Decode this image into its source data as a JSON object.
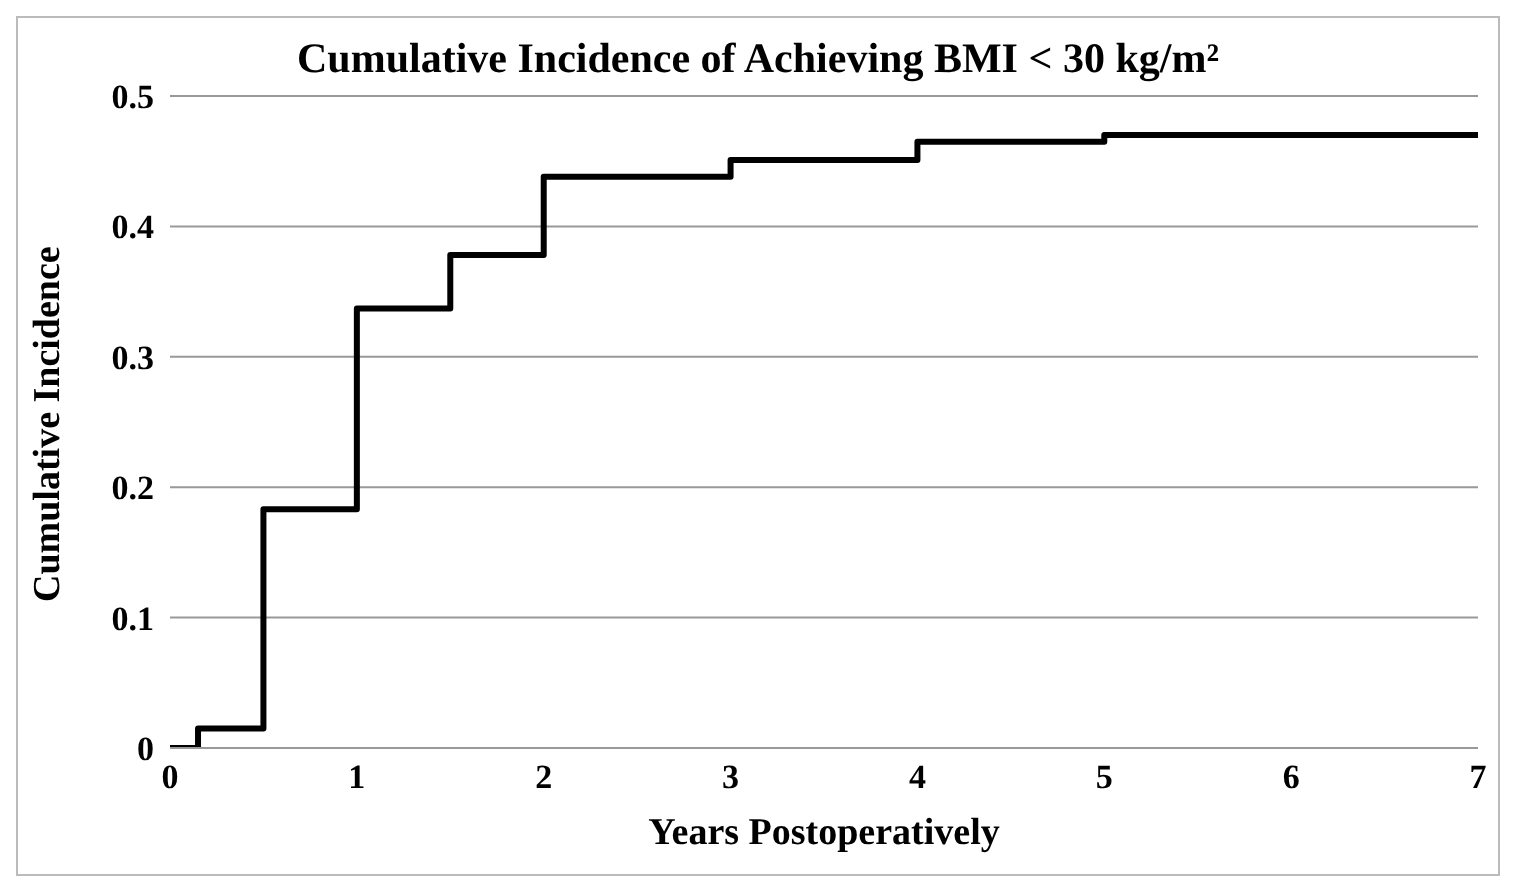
{
  "chart_data": {
    "type": "step",
    "title": "Cumulative Incidence of Achieving BMI < 30 kg/m²",
    "xlabel": "Years Postoperatively",
    "ylabel": "Cumulative Incidence",
    "x": [
      0,
      0.15,
      0.5,
      1,
      1.5,
      2,
      3,
      4,
      5,
      7
    ],
    "series": [
      {
        "color": "#000000",
        "values": [
          0,
          0.015,
          0.183,
          0.337,
          0.378,
          0.438,
          0.451,
          0.465,
          0.47,
          0.47
        ]
      }
    ],
    "xlim": [
      0,
      7
    ],
    "xticks": [
      0,
      1,
      2,
      3,
      4,
      5,
      6,
      7
    ],
    "ylim": [
      0,
      0.5
    ],
    "yticks": [
      0,
      0.1,
      0.2,
      0.3,
      0.4,
      0.5
    ],
    "grid": "y",
    "legend": false,
    "marker": "none",
    "line_style": "solid"
  }
}
